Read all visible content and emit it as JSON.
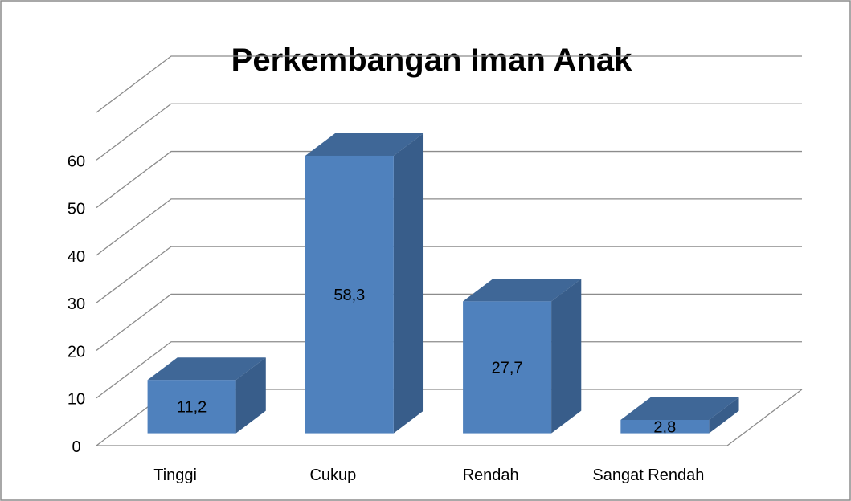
{
  "chart_data": {
    "type": "bar3d",
    "title": "Perkembangan Iman Anak",
    "categories": [
      "Tinggi",
      "Cukup",
      "Rendah",
      "Sangat Rendah"
    ],
    "values": [
      11.2,
      58.3,
      27.7,
      2.8
    ],
    "value_labels": [
      "11,2",
      "58,3",
      "27,7",
      "2,8"
    ],
    "color": "#4f81bd",
    "ylim": [
      0,
      70
    ],
    "yticks": [
      0,
      10,
      20,
      30,
      40,
      50,
      60
    ],
    "grid": true
  }
}
